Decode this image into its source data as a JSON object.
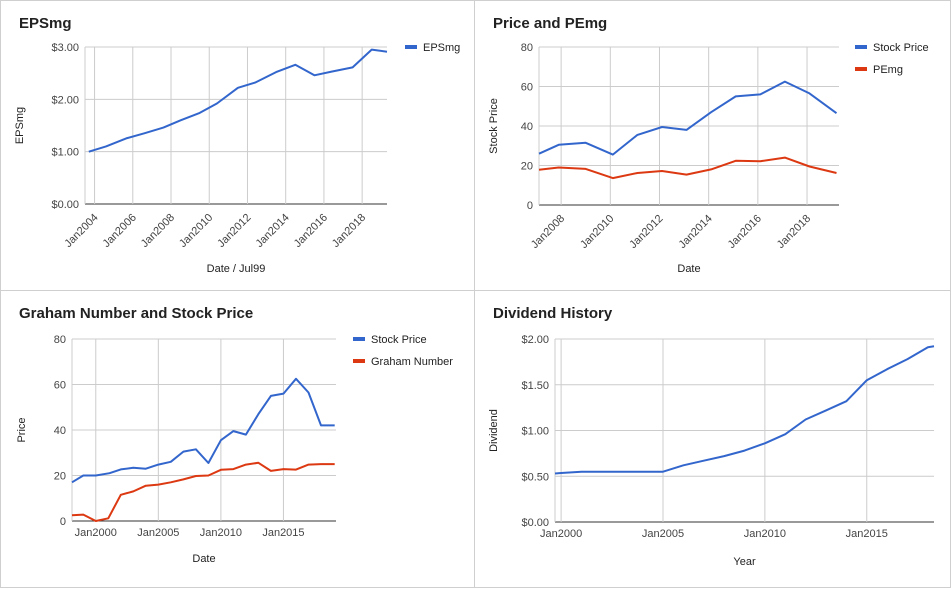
{
  "charts": [
    {
      "id": "eps",
      "chart_data": {
        "type": "line",
        "title": "EPSmg",
        "xlabel": "Date / Jul99",
        "ylabel": "EPSmg",
        "x_ticks": [
          "Jan2004",
          "Jan2006",
          "Jan2008",
          "Jan2010",
          "Jan2012",
          "Jan2014",
          "Jan2016",
          "Jan2018"
        ],
        "y_ticks": [
          "$0.00",
          "$1.00",
          "$2.00",
          "$3.00"
        ],
        "xlim": [
          2003.5,
          2019.3
        ],
        "ylim": [
          0,
          3
        ],
        "legend": "right",
        "series": [
          {
            "name": "EPSmg",
            "color": "#3366cc",
            "x": [
              2003.7,
              2004.6,
              2005.7,
              2006.6,
              2007.6,
              2008.5,
              2009.5,
              2010.4,
              2011.5,
              2012.4,
              2013.5,
              2014.5,
              2015.5,
              2016.4,
              2017.5,
              2018.5,
              2019.3
            ],
            "y": [
              1.0,
              1.1,
              1.26,
              1.35,
              1.46,
              1.6,
              1.74,
              1.92,
              2.22,
              2.32,
              2.52,
              2.66,
              2.46,
              2.53,
              2.61,
              2.95,
              2.91
            ]
          }
        ]
      }
    },
    {
      "id": "pe",
      "chart_data": {
        "type": "line",
        "title": "Price and PEmg",
        "xlabel": "Date",
        "ylabel": "Stock Price",
        "x_ticks": [
          "Jan2008",
          "Jan2010",
          "Jan2012",
          "Jan2014",
          "Jan2016",
          "Jan2018"
        ],
        "y_ticks": [
          "0",
          "20",
          "40",
          "60",
          "80"
        ],
        "xlim": [
          2007.1,
          2019.3
        ],
        "ylim": [
          0,
          80
        ],
        "legend": "right",
        "series": [
          {
            "name": "Stock Price",
            "color": "#3366cc",
            "x": [
              2007.1,
              2007.9,
              2009.0,
              2010.1,
              2011.1,
              2012.1,
              2013.1,
              2014.1,
              2015.1,
              2016.1,
              2017.1,
              2018.1,
              2019.2
            ],
            "y": [
              26,
              30.5,
              31.5,
              25.5,
              35.5,
              39.5,
              38,
              47,
              55,
              56,
              62.5,
              56.5,
              46.5
            ]
          },
          {
            "name": "PEmg",
            "color": "#dc3912",
            "x": [
              2007.1,
              2007.9,
              2009.0,
              2010.1,
              2011.1,
              2012.1,
              2013.1,
              2014.1,
              2015.1,
              2016.1,
              2017.1,
              2018.1,
              2019.2
            ],
            "y": [
              17.8,
              19,
              18.3,
              13.6,
              16.2,
              17.2,
              15.4,
              18,
              22.4,
              22.2,
              24,
              19.5,
              16.2
            ]
          }
        ]
      }
    },
    {
      "id": "graham",
      "chart_data": {
        "type": "line",
        "title": "Graham Number and Stock Price",
        "xlabel": "Date",
        "ylabel": "Price",
        "x_ticks": [
          "Jan2000",
          "Jan2005",
          "Jan2010",
          "Jan2015"
        ],
        "y_ticks": [
          "0",
          "20",
          "40",
          "60",
          "80"
        ],
        "xlim": [
          1998.1,
          2019.2
        ],
        "ylim": [
          0,
          80
        ],
        "legend": "right",
        "series": [
          {
            "name": "Stock Price",
            "color": "#3366cc",
            "x": [
              1998.1,
              1999.0,
              2000.0,
              2001.1,
              2002.0,
              2003.0,
              2004.0,
              2005.0,
              2006.0,
              2007.0,
              2008.0,
              2009.0,
              2010.0,
              2011.0,
              2012.0,
              2013.0,
              2014.0,
              2015.0,
              2016.0,
              2017.0,
              2018.0,
              2019.1
            ],
            "y": [
              17,
              20,
              20,
              21,
              22.7,
              23.4,
              23,
              24.8,
              26,
              30.5,
              31.5,
              25.5,
              35.5,
              39.5,
              38,
              47,
              55,
              56,
              62.5,
              56.5,
              42,
              42
            ]
          },
          {
            "name": "Graham Number",
            "color": "#dc3912",
            "x": [
              1998.1,
              1999.0,
              2000.0,
              2001.0,
              2002.0,
              2003.0,
              2004.0,
              2005.0,
              2006.0,
              2007.0,
              2008.0,
              2009.0,
              2010.0,
              2011.0,
              2012.0,
              2013.0,
              2014.0,
              2015.0,
              2016.0,
              2017.0,
              2018.0,
              2019.1
            ],
            "y": [
              2.5,
              2.8,
              0,
              1.2,
              11.5,
              13,
              15.5,
              16,
              17,
              18.3,
              19.8,
              20,
              22.5,
              22.8,
              24.8,
              25.6,
              22,
              22.8,
              22.6,
              24.8,
              25,
              25
            ]
          }
        ]
      }
    },
    {
      "id": "dividend",
      "chart_data": {
        "type": "line",
        "title": "Dividend History",
        "xlabel": "Year",
        "ylabel": "Dividend",
        "x_ticks": [
          "Jan2000",
          "Jan2005",
          "Jan2010",
          "Jan2015"
        ],
        "y_ticks": [
          "$0.00",
          "$0.50",
          "$1.00",
          "$1.50",
          "$2.00"
        ],
        "xlim": [
          1999.7,
          2018.3
        ],
        "ylim": [
          0,
          2
        ],
        "legend": "none",
        "series": [
          {
            "name": "",
            "color": "#3366cc",
            "x": [
              1999.7,
              2000.0,
              2001.0,
              2002.0,
              2003.0,
              2004.0,
              2005.0,
              2006.0,
              2007.0,
              2008.0,
              2009.0,
              2010.0,
              2011.0,
              2012.0,
              2013.0,
              2014.0,
              2015.0,
              2016.0,
              2017.0,
              2018.0,
              2018.3
            ],
            "y": [
              0.53,
              0.535,
              0.55,
              0.55,
              0.55,
              0.55,
              0.55,
              0.62,
              0.67,
              0.72,
              0.78,
              0.86,
              0.96,
              1.12,
              1.22,
              1.32,
              1.55,
              1.67,
              1.78,
              1.91,
              1.92
            ]
          }
        ]
      }
    }
  ]
}
